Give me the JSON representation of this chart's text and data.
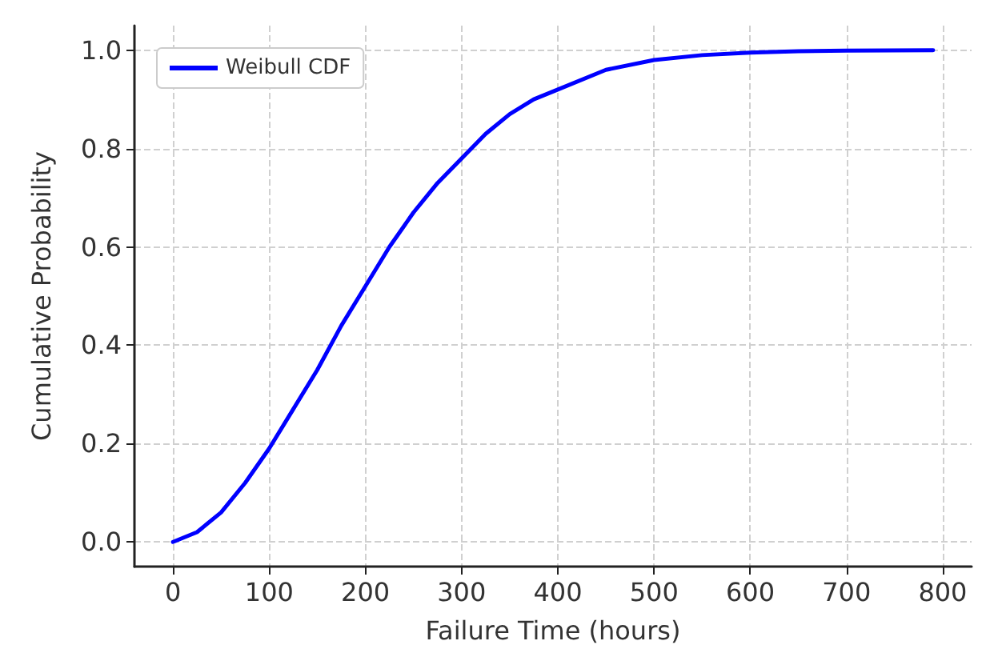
{
  "chart_data": {
    "type": "line",
    "xlabel": "Failure Time (hours)",
    "ylabel": "Cumulative Probability",
    "x": [
      0,
      25,
      50,
      75,
      100,
      125,
      150,
      175,
      200,
      225,
      250,
      275,
      300,
      325,
      350,
      375,
      400,
      450,
      500,
      550,
      600,
      650,
      700,
      790
    ],
    "series": [
      {
        "name": "Weibull CDF",
        "color": "#0000ff",
        "values": [
          0,
          0.02,
          0.06,
          0.12,
          0.19,
          0.27,
          0.35,
          0.44,
          0.52,
          0.6,
          0.67,
          0.73,
          0.78,
          0.83,
          0.87,
          0.9,
          0.92,
          0.96,
          0.98,
          0.99,
          0.995,
          0.998,
          0.999,
          1
        ]
      }
    ],
    "xlim": [
      -40,
      830
    ],
    "xticks": [
      0,
      100,
      200,
      300,
      400,
      500,
      600,
      700,
      800
    ],
    "ylim": [
      -0.05,
      1.05
    ],
    "yticks": [
      {
        "value": 0,
        "label": "0.0"
      },
      {
        "value": 0.2,
        "label": "0.2"
      },
      {
        "value": 0.4,
        "label": "0.4"
      },
      {
        "value": 0.6,
        "label": "0.6"
      },
      {
        "value": 0.8,
        "label": "0.8"
      },
      {
        "value": 1,
        "label": "1.0"
      }
    ],
    "grid": true,
    "legend": "top left",
    "marker": "none",
    "line_style": "solid"
  }
}
